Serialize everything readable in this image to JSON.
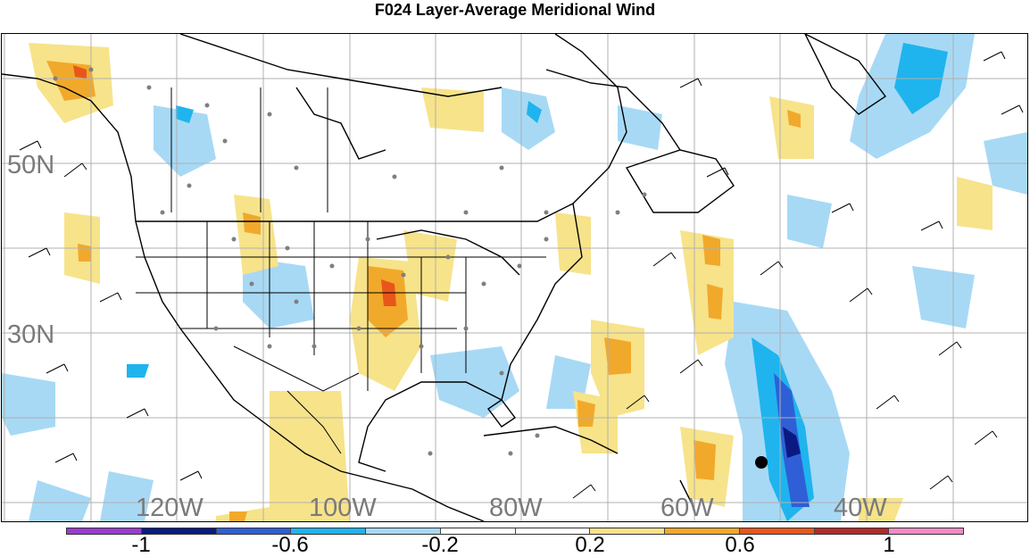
{
  "title": "F024 Layer-Average Meridional Wind",
  "map": {
    "lat_labels": [
      "50N",
      "30N"
    ],
    "lon_labels": [
      "120W",
      "100W",
      "80W",
      "60W",
      "40W"
    ]
  },
  "colorbar": {
    "labels": [
      "-1",
      "-0.6",
      "-0.2",
      "0.2",
      "0.6",
      "1"
    ],
    "colors": [
      "#9b3bd1",
      "#0b1a80",
      "#2f5fd6",
      "#1fb4ee",
      "#a7d9f5",
      "#ffffff",
      "#ffffff",
      "#f7e38a",
      "#f1a92b",
      "#e9561b",
      "#b42a2a",
      "#f08cc4"
    ]
  },
  "colors": {
    "land_outline": "#000000",
    "grid": "#b0b0b0",
    "station_dots": "#7f7f7f",
    "marker": "#000000"
  }
}
